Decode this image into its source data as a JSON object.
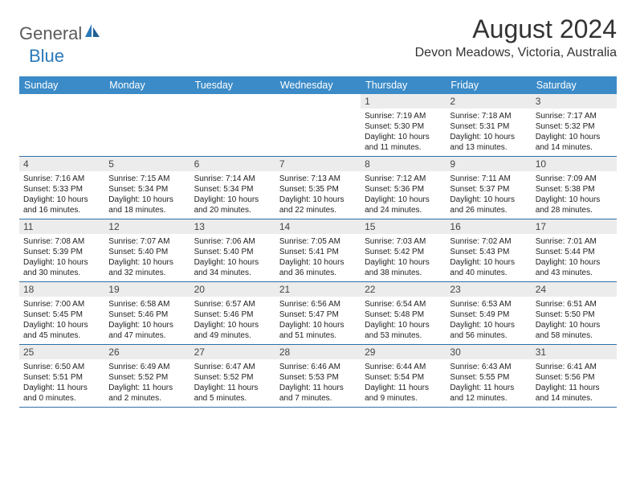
{
  "brand": {
    "name_part1": "General",
    "name_part2": "Blue"
  },
  "title": {
    "month": "August 2024",
    "location": "Devon Meadows, Victoria, Australia"
  },
  "colors": {
    "header_bg": "#3b8bc8",
    "header_text": "#ffffff",
    "daynum_bg": "#ececec",
    "rule": "#2f6fa6",
    "logo_gray": "#5a5a5a",
    "logo_blue": "#2a78b8"
  },
  "days_of_week": [
    "Sunday",
    "Monday",
    "Tuesday",
    "Wednesday",
    "Thursday",
    "Friday",
    "Saturday"
  ],
  "weeks": [
    [
      {
        "n": "",
        "sr": "",
        "ss": "",
        "dl": ""
      },
      {
        "n": "",
        "sr": "",
        "ss": "",
        "dl": ""
      },
      {
        "n": "",
        "sr": "",
        "ss": "",
        "dl": ""
      },
      {
        "n": "",
        "sr": "",
        "ss": "",
        "dl": ""
      },
      {
        "n": "1",
        "sr": "Sunrise: 7:19 AM",
        "ss": "Sunset: 5:30 PM",
        "dl": "Daylight: 10 hours and 11 minutes."
      },
      {
        "n": "2",
        "sr": "Sunrise: 7:18 AM",
        "ss": "Sunset: 5:31 PM",
        "dl": "Daylight: 10 hours and 13 minutes."
      },
      {
        "n": "3",
        "sr": "Sunrise: 7:17 AM",
        "ss": "Sunset: 5:32 PM",
        "dl": "Daylight: 10 hours and 14 minutes."
      }
    ],
    [
      {
        "n": "4",
        "sr": "Sunrise: 7:16 AM",
        "ss": "Sunset: 5:33 PM",
        "dl": "Daylight: 10 hours and 16 minutes."
      },
      {
        "n": "5",
        "sr": "Sunrise: 7:15 AM",
        "ss": "Sunset: 5:34 PM",
        "dl": "Daylight: 10 hours and 18 minutes."
      },
      {
        "n": "6",
        "sr": "Sunrise: 7:14 AM",
        "ss": "Sunset: 5:34 PM",
        "dl": "Daylight: 10 hours and 20 minutes."
      },
      {
        "n": "7",
        "sr": "Sunrise: 7:13 AM",
        "ss": "Sunset: 5:35 PM",
        "dl": "Daylight: 10 hours and 22 minutes."
      },
      {
        "n": "8",
        "sr": "Sunrise: 7:12 AM",
        "ss": "Sunset: 5:36 PM",
        "dl": "Daylight: 10 hours and 24 minutes."
      },
      {
        "n": "9",
        "sr": "Sunrise: 7:11 AM",
        "ss": "Sunset: 5:37 PM",
        "dl": "Daylight: 10 hours and 26 minutes."
      },
      {
        "n": "10",
        "sr": "Sunrise: 7:09 AM",
        "ss": "Sunset: 5:38 PM",
        "dl": "Daylight: 10 hours and 28 minutes."
      }
    ],
    [
      {
        "n": "11",
        "sr": "Sunrise: 7:08 AM",
        "ss": "Sunset: 5:39 PM",
        "dl": "Daylight: 10 hours and 30 minutes."
      },
      {
        "n": "12",
        "sr": "Sunrise: 7:07 AM",
        "ss": "Sunset: 5:40 PM",
        "dl": "Daylight: 10 hours and 32 minutes."
      },
      {
        "n": "13",
        "sr": "Sunrise: 7:06 AM",
        "ss": "Sunset: 5:40 PM",
        "dl": "Daylight: 10 hours and 34 minutes."
      },
      {
        "n": "14",
        "sr": "Sunrise: 7:05 AM",
        "ss": "Sunset: 5:41 PM",
        "dl": "Daylight: 10 hours and 36 minutes."
      },
      {
        "n": "15",
        "sr": "Sunrise: 7:03 AM",
        "ss": "Sunset: 5:42 PM",
        "dl": "Daylight: 10 hours and 38 minutes."
      },
      {
        "n": "16",
        "sr": "Sunrise: 7:02 AM",
        "ss": "Sunset: 5:43 PM",
        "dl": "Daylight: 10 hours and 40 minutes."
      },
      {
        "n": "17",
        "sr": "Sunrise: 7:01 AM",
        "ss": "Sunset: 5:44 PM",
        "dl": "Daylight: 10 hours and 43 minutes."
      }
    ],
    [
      {
        "n": "18",
        "sr": "Sunrise: 7:00 AM",
        "ss": "Sunset: 5:45 PM",
        "dl": "Daylight: 10 hours and 45 minutes."
      },
      {
        "n": "19",
        "sr": "Sunrise: 6:58 AM",
        "ss": "Sunset: 5:46 PM",
        "dl": "Daylight: 10 hours and 47 minutes."
      },
      {
        "n": "20",
        "sr": "Sunrise: 6:57 AM",
        "ss": "Sunset: 5:46 PM",
        "dl": "Daylight: 10 hours and 49 minutes."
      },
      {
        "n": "21",
        "sr": "Sunrise: 6:56 AM",
        "ss": "Sunset: 5:47 PM",
        "dl": "Daylight: 10 hours and 51 minutes."
      },
      {
        "n": "22",
        "sr": "Sunrise: 6:54 AM",
        "ss": "Sunset: 5:48 PM",
        "dl": "Daylight: 10 hours and 53 minutes."
      },
      {
        "n": "23",
        "sr": "Sunrise: 6:53 AM",
        "ss": "Sunset: 5:49 PM",
        "dl": "Daylight: 10 hours and 56 minutes."
      },
      {
        "n": "24",
        "sr": "Sunrise: 6:51 AM",
        "ss": "Sunset: 5:50 PM",
        "dl": "Daylight: 10 hours and 58 minutes."
      }
    ],
    [
      {
        "n": "25",
        "sr": "Sunrise: 6:50 AM",
        "ss": "Sunset: 5:51 PM",
        "dl": "Daylight: 11 hours and 0 minutes."
      },
      {
        "n": "26",
        "sr": "Sunrise: 6:49 AM",
        "ss": "Sunset: 5:52 PM",
        "dl": "Daylight: 11 hours and 2 minutes."
      },
      {
        "n": "27",
        "sr": "Sunrise: 6:47 AM",
        "ss": "Sunset: 5:52 PM",
        "dl": "Daylight: 11 hours and 5 minutes."
      },
      {
        "n": "28",
        "sr": "Sunrise: 6:46 AM",
        "ss": "Sunset: 5:53 PM",
        "dl": "Daylight: 11 hours and 7 minutes."
      },
      {
        "n": "29",
        "sr": "Sunrise: 6:44 AM",
        "ss": "Sunset: 5:54 PM",
        "dl": "Daylight: 11 hours and 9 minutes."
      },
      {
        "n": "30",
        "sr": "Sunrise: 6:43 AM",
        "ss": "Sunset: 5:55 PM",
        "dl": "Daylight: 11 hours and 12 minutes."
      },
      {
        "n": "31",
        "sr": "Sunrise: 6:41 AM",
        "ss": "Sunset: 5:56 PM",
        "dl": "Daylight: 11 hours and 14 minutes."
      }
    ]
  ]
}
